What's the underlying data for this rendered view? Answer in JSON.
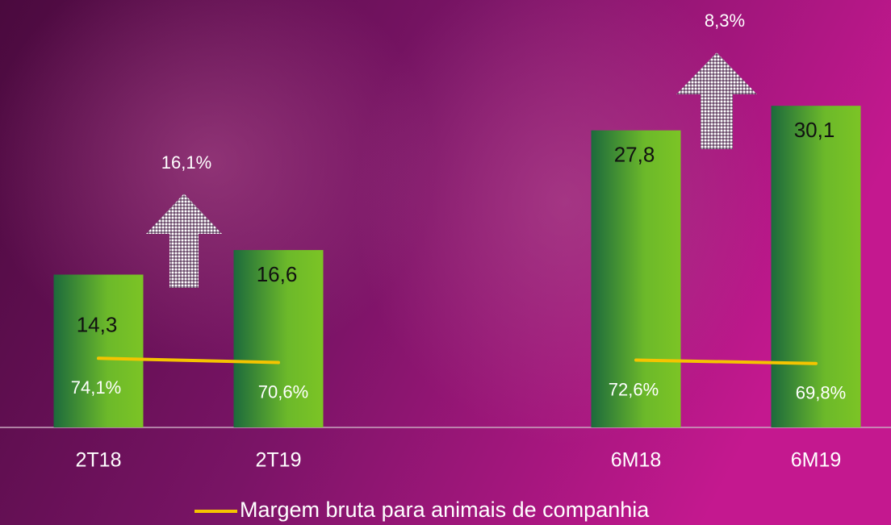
{
  "chart_data": {
    "type": "bar",
    "categories": [
      "2T18",
      "2T19",
      "6M18",
      "6M19"
    ],
    "ylim": [
      0,
      40
    ],
    "y2lim": [
      17,
      370
    ],
    "series": [
      {
        "type": "bar",
        "color": "#7cc425",
        "values": [
          14.3,
          16.6,
          27.8,
          30.1
        ],
        "value_labels": [
          "14,3",
          "16,6",
          "27,8",
          "30,1"
        ]
      },
      {
        "type": "line",
        "name": "Margem bruta para animais de companhia",
        "color": "#f5c400",
        "axis": "y2",
        "values": [
          74.1,
          70.6,
          72.6,
          69.8
        ],
        "value_labels": [
          "74,1%",
          "70,6%",
          "72,6%",
          "69,8%"
        ]
      }
    ],
    "annotations": [
      "16,1%",
      "8,3%"
    ]
  }
}
